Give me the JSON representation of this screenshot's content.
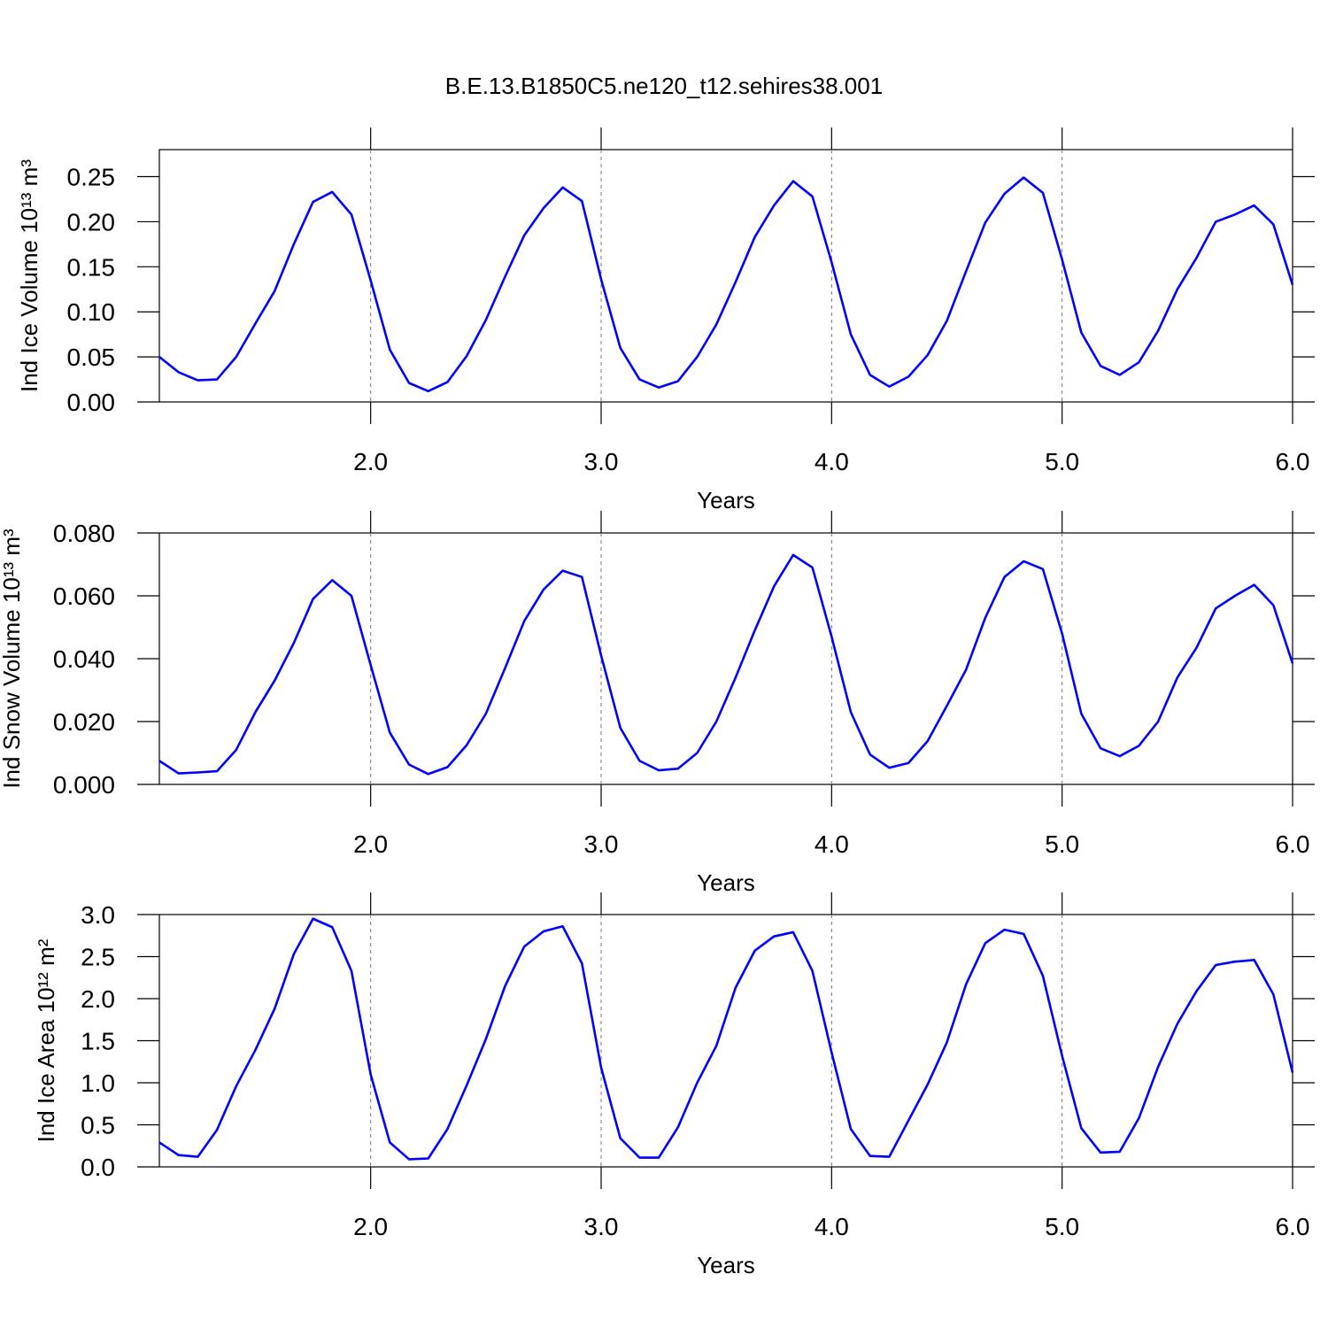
{
  "chart_data": [
    {
      "type": "line",
      "title": "B.E.13.B1850C5.ne120_t12.sehires38.001",
      "xlabel": "Years",
      "ylabel": "Ind Ice Volume 10¹³ m³",
      "color": "#0000ff",
      "grid": "x",
      "x": [
        1.0833,
        1.1667,
        1.25,
        1.3333,
        1.4167,
        1.5,
        1.5833,
        1.6667,
        1.75,
        1.8333,
        1.9167,
        2.0,
        2.0833,
        2.1667,
        2.25,
        2.3333,
        2.4167,
        2.5,
        2.5833,
        2.6667,
        2.75,
        2.8333,
        2.9167,
        3.0,
        3.0833,
        3.1667,
        3.25,
        3.3333,
        3.4167,
        3.5,
        3.5833,
        3.6667,
        3.75,
        3.8333,
        3.9167,
        4.0,
        4.0833,
        4.1667,
        4.25,
        4.3333,
        4.4167,
        4.5,
        4.5833,
        4.6667,
        4.75,
        4.8333,
        4.9167,
        5.0,
        5.0833,
        5.1667,
        5.25,
        5.3333,
        5.4167,
        5.5,
        5.5833,
        5.6667,
        5.75,
        5.8333,
        5.9167,
        6.0
      ],
      "values": [
        0.05,
        0.033,
        0.024,
        0.025,
        0.05,
        0.087,
        0.123,
        0.175,
        0.222,
        0.233,
        0.208,
        0.135,
        0.058,
        0.021,
        0.012,
        0.022,
        0.051,
        0.091,
        0.139,
        0.185,
        0.215,
        0.238,
        0.223,
        0.136,
        0.06,
        0.025,
        0.016,
        0.023,
        0.05,
        0.086,
        0.133,
        0.183,
        0.218,
        0.245,
        0.228,
        0.155,
        0.075,
        0.03,
        0.017,
        0.028,
        0.052,
        0.09,
        0.145,
        0.199,
        0.231,
        0.249,
        0.232,
        0.158,
        0.077,
        0.04,
        0.03,
        0.044,
        0.079,
        0.125,
        0.16,
        0.2,
        0.208,
        0.218,
        0.197,
        0.13
      ],
      "xlim": [
        1.0833,
        6.0
      ],
      "xticks": [
        {
          "value": 2,
          "label": "2.0"
        },
        {
          "value": 3,
          "label": "3.0"
        },
        {
          "value": 4,
          "label": "4.0"
        },
        {
          "value": 5,
          "label": "5.0"
        },
        {
          "value": 6,
          "label": "6.0"
        }
      ],
      "ylim": [
        0,
        0.28
      ],
      "yticks": [
        {
          "value": 0,
          "label": "0.00"
        },
        0.05,
        {
          "value": 0.1,
          "label": "0.10"
        },
        0.15,
        {
          "value": 0.2,
          "label": "0.20"
        },
        0.25
      ]
    },
    {
      "type": "line",
      "xlabel": "Years",
      "ylabel": "Ind Snow Volume 10¹³ m³",
      "color": "#0000ff",
      "grid": "x",
      "x": [
        1.0833,
        1.1667,
        1.25,
        1.3333,
        1.4167,
        1.5,
        1.5833,
        1.6667,
        1.75,
        1.8333,
        1.9167,
        2.0,
        2.0833,
        2.1667,
        2.25,
        2.3333,
        2.4167,
        2.5,
        2.5833,
        2.6667,
        2.75,
        2.8333,
        2.9167,
        3.0,
        3.0833,
        3.1667,
        3.25,
        3.3333,
        3.4167,
        3.5,
        3.5833,
        3.6667,
        3.75,
        3.8333,
        3.9167,
        4.0,
        4.0833,
        4.1667,
        4.25,
        4.3333,
        4.4167,
        4.5,
        4.5833,
        4.6667,
        4.75,
        4.8333,
        4.9167,
        5.0,
        5.0833,
        5.1667,
        5.25,
        5.3333,
        5.4167,
        5.5,
        5.5833,
        5.6667,
        5.75,
        5.8333,
        5.9167,
        6.0
      ],
      "values": [
        0.0075,
        0.0035,
        0.0038,
        0.0042,
        0.011,
        0.023,
        0.033,
        0.045,
        0.059,
        0.065,
        0.06,
        0.038,
        0.0165,
        0.0063,
        0.0033,
        0.0055,
        0.0125,
        0.0225,
        0.037,
        0.052,
        0.062,
        0.068,
        0.066,
        0.041,
        0.018,
        0.0075,
        0.0045,
        0.005,
        0.01,
        0.02,
        0.034,
        0.049,
        0.063,
        0.073,
        0.069,
        0.047,
        0.023,
        0.0095,
        0.0053,
        0.0068,
        0.0138,
        0.025,
        0.0365,
        0.053,
        0.066,
        0.071,
        0.0685,
        0.048,
        0.0225,
        0.0115,
        0.009,
        0.0123,
        0.02,
        0.034,
        0.0435,
        0.056,
        0.06,
        0.0635,
        0.057,
        0.0385
      ],
      "xlim": [
        1.0833,
        6.0
      ],
      "xticks": [
        {
          "value": 2,
          "label": "2.0"
        },
        {
          "value": 3,
          "label": "3.0"
        },
        {
          "value": 4,
          "label": "4.0"
        },
        {
          "value": 5,
          "label": "5.0"
        },
        {
          "value": 6,
          "label": "6.0"
        }
      ],
      "ylim": [
        0,
        0.08
      ],
      "yticks": [
        {
          "value": 0,
          "label": "0.000"
        },
        {
          "value": 0.02,
          "label": "0.020"
        },
        {
          "value": 0.04,
          "label": "0.040"
        },
        {
          "value": 0.06,
          "label": "0.060"
        },
        {
          "value": 0.08,
          "label": "0.080"
        }
      ]
    },
    {
      "type": "line",
      "xlabel": "Years",
      "ylabel": "Ind Ice Area 10¹² m²",
      "color": "#0000ff",
      "grid": "x",
      "x": [
        1.0833,
        1.1667,
        1.25,
        1.3333,
        1.4167,
        1.5,
        1.5833,
        1.6667,
        1.75,
        1.8333,
        1.9167,
        2.0,
        2.0833,
        2.1667,
        2.25,
        2.3333,
        2.4167,
        2.5,
        2.5833,
        2.6667,
        2.75,
        2.8333,
        2.9167,
        3.0,
        3.0833,
        3.1667,
        3.25,
        3.3333,
        3.4167,
        3.5,
        3.5833,
        3.6667,
        3.75,
        3.8333,
        3.9167,
        4.0,
        4.0833,
        4.1667,
        4.25,
        4.3333,
        4.4167,
        4.5,
        4.5833,
        4.6667,
        4.75,
        4.8333,
        4.9167,
        5.0,
        5.0833,
        5.1667,
        5.25,
        5.3333,
        5.4167,
        5.5,
        5.5833,
        5.6667,
        5.75,
        5.8333,
        5.9167,
        6.0
      ],
      "values": [
        0.29,
        0.14,
        0.12,
        0.44,
        0.96,
        1.39,
        1.88,
        2.53,
        2.95,
        2.85,
        2.33,
        1.1,
        0.29,
        0.09,
        0.1,
        0.45,
        0.97,
        1.52,
        2.15,
        2.62,
        2.8,
        2.86,
        2.42,
        1.18,
        0.34,
        0.11,
        0.11,
        0.47,
        1.0,
        1.44,
        2.13,
        2.57,
        2.74,
        2.79,
        2.33,
        1.36,
        0.45,
        0.13,
        0.12,
        0.55,
        0.98,
        1.48,
        2.17,
        2.66,
        2.82,
        2.77,
        2.27,
        1.32,
        0.46,
        0.17,
        0.18,
        0.58,
        1.19,
        1.7,
        2.09,
        2.4,
        2.44,
        2.46,
        2.05,
        1.12
      ],
      "xlim": [
        1.0833,
        6.0
      ],
      "xticks": [
        {
          "value": 2,
          "label": "2.0"
        },
        {
          "value": 3,
          "label": "3.0"
        },
        {
          "value": 4,
          "label": "4.0"
        },
        {
          "value": 5,
          "label": "5.0"
        },
        {
          "value": 6,
          "label": "6.0"
        }
      ],
      "ylim": [
        0,
        3.0
      ],
      "yticks": [
        {
          "value": 0,
          "label": "0.0"
        },
        0.5,
        {
          "value": 1,
          "label": "1.0"
        },
        1.5,
        {
          "value": 2,
          "label": "2.0"
        },
        2.5,
        {
          "value": 3,
          "label": "3.0"
        }
      ]
    }
  ]
}
